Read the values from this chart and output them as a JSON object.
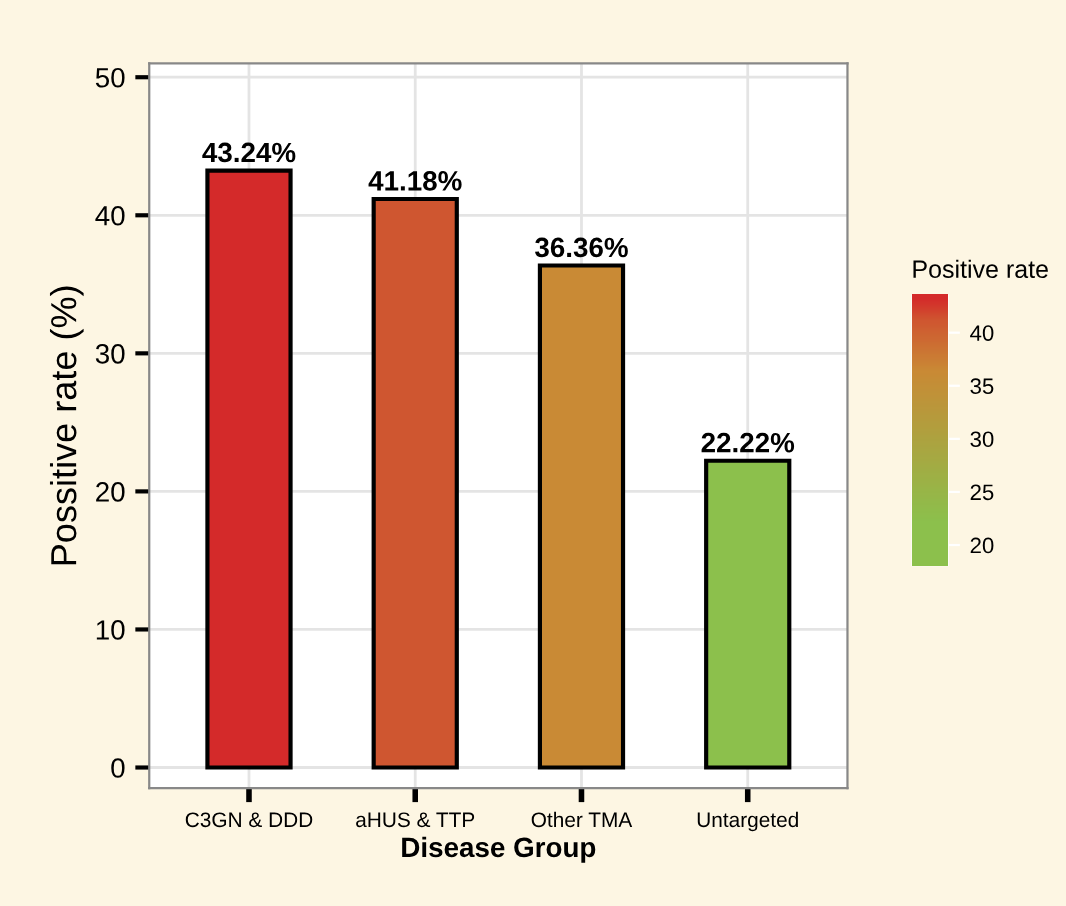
{
  "chart_data": {
    "type": "bar",
    "xlabel": "Disease Group",
    "ylabel": "Possitive rate (%)",
    "clabel": "Positive rate",
    "categories": [
      "C3GN & DDD",
      "aHUS & TTP",
      "Other TMA",
      "Untargeted"
    ],
    "values": [
      43.24,
      41.18,
      36.36,
      22.22
    ],
    "value_labels": [
      "43.24%",
      "41.18%",
      "36.36%",
      "22.22%"
    ],
    "colors": [
      "#d42a2a",
      "#cf5630",
      "#c98a35",
      "#8cc04c"
    ],
    "ylim": [
      -1.5,
      51
    ],
    "yticks": [
      0,
      10,
      20,
      30,
      40,
      50
    ],
    "clim": [
      18,
      43.6
    ],
    "cticks": [
      20,
      25,
      30,
      35,
      40
    ],
    "grid": true
  }
}
